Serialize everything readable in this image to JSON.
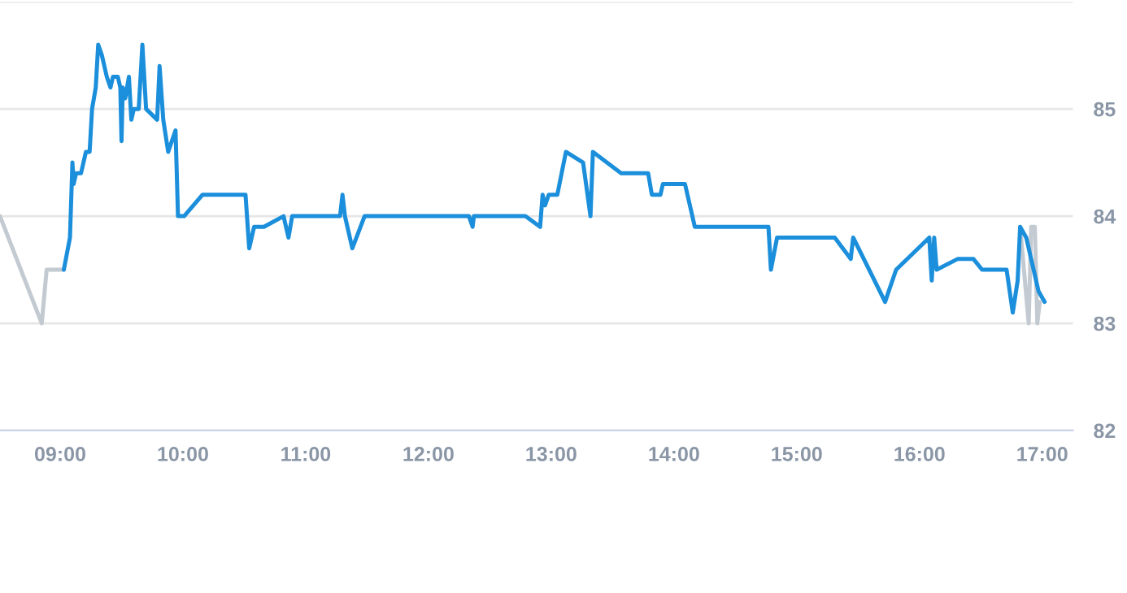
{
  "chart_data": {
    "type": "line",
    "series": [
      {
        "color": "#c3cad1",
        "x": [
          8.51,
          8.85,
          8.89,
          9.03
        ],
        "values": [
          84.0,
          83.0,
          83.5,
          83.5
        ]
      },
      {
        "color": "#c3cad1",
        "x": [
          16.82,
          16.89,
          16.91,
          16.94,
          16.96,
          16.98
        ],
        "values": [
          83.9,
          83.0,
          83.9,
          83.9,
          83.0,
          83.2
        ]
      },
      {
        "color": "#1b8fdb",
        "x": [
          9.03,
          9.08,
          9.1,
          9.11,
          9.13,
          9.17,
          9.21,
          9.24,
          9.26,
          9.29,
          9.31,
          9.34,
          9.38,
          9.41,
          9.43,
          9.47,
          9.49,
          9.5,
          9.51,
          9.53,
          9.56,
          9.58,
          9.6,
          9.64,
          9.67,
          9.7,
          9.79,
          9.81,
          9.84,
          9.88,
          9.94,
          9.96,
          10.01,
          10.16,
          10.51,
          10.54,
          10.58,
          10.66,
          10.82,
          10.86,
          10.89,
          11.28,
          11.3,
          11.32,
          11.38,
          11.48,
          12.33,
          12.36,
          12.37,
          12.79,
          12.91,
          12.93,
          12.95,
          12.98,
          13.05,
          13.12,
          13.26,
          13.32,
          13.34,
          13.57,
          13.79,
          13.82,
          13.89,
          13.91,
          14.09,
          14.17,
          14.77,
          14.79,
          14.84,
          15.31,
          15.44,
          15.46,
          15.72,
          15.81,
          16.08,
          16.1,
          16.12,
          16.14,
          16.31,
          16.44,
          16.51,
          16.71,
          16.76,
          16.8,
          16.82,
          16.87,
          16.97,
          17.02
        ],
        "values": [
          83.5,
          83.8,
          84.5,
          84.3,
          84.4,
          84.4,
          84.6,
          84.6,
          85.0,
          85.2,
          85.6,
          85.5,
          85.3,
          85.2,
          85.3,
          85.3,
          85.2,
          84.7,
          85.2,
          85.1,
          85.3,
          84.9,
          85.0,
          85.0,
          85.6,
          85.0,
          84.9,
          85.4,
          84.9,
          84.6,
          84.8,
          84.0,
          84.0,
          84.2,
          84.2,
          83.7,
          83.9,
          83.9,
          84.0,
          83.8,
          84.0,
          84.0,
          84.2,
          84.0,
          83.7,
          84.0,
          84.0,
          83.9,
          84.0,
          84.0,
          83.9,
          84.2,
          84.1,
          84.2,
          84.2,
          84.6,
          84.5,
          84.0,
          84.6,
          84.4,
          84.4,
          84.2,
          84.2,
          84.3,
          84.3,
          83.9,
          83.9,
          83.5,
          83.8,
          83.8,
          83.6,
          83.8,
          83.2,
          83.5,
          83.8,
          83.4,
          83.8,
          83.5,
          83.6,
          83.6,
          83.5,
          83.5,
          83.1,
          83.4,
          83.9,
          83.8,
          83.3,
          83.2
        ]
      }
    ],
    "xlim": [
      8.51,
      17.25
    ],
    "xticks": [
      {
        "value": 9,
        "label": "09:00"
      },
      {
        "value": 10,
        "label": "10:00"
      },
      {
        "value": 11,
        "label": "11:00"
      },
      {
        "value": 12,
        "label": "12:00"
      },
      {
        "value": 13,
        "label": "13:00"
      },
      {
        "value": 14,
        "label": "14:00"
      },
      {
        "value": 15,
        "label": "15:00"
      },
      {
        "value": 16,
        "label": "16:00"
      },
      {
        "value": 17,
        "label": "17:00"
      }
    ],
    "ylim": [
      82,
      86
    ],
    "yticks": [
      82,
      83,
      84,
      85,
      {
        "value": 86,
        "label": null
      }
    ],
    "grid": "y",
    "legend": false,
    "marker": "none",
    "line_style": "solid"
  }
}
